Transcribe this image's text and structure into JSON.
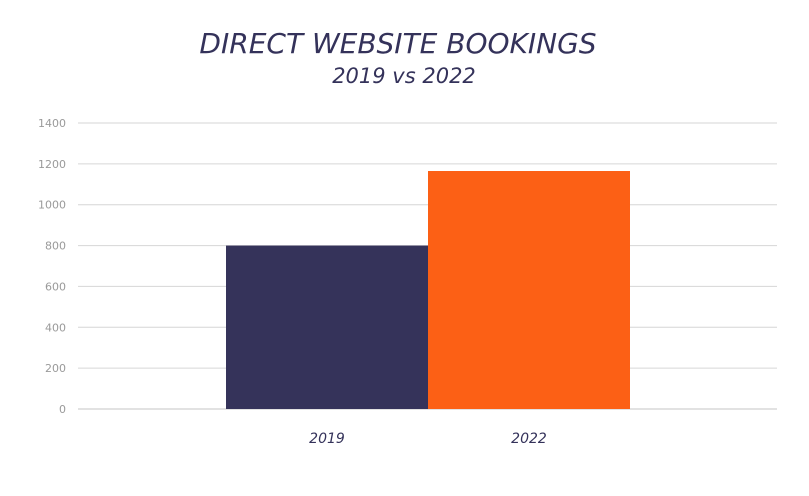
{
  "chart_data": {
    "type": "bar",
    "title": "DIRECT WEBSITE BOOKINGS",
    "subtitle": "2019 vs 2022",
    "categories": [
      "2019",
      "2022"
    ],
    "values": [
      800,
      1165
    ],
    "colors": [
      "#35335a",
      "#fc6015"
    ],
    "ylim": [
      0,
      1400
    ],
    "yticks": [
      0,
      200,
      400,
      600,
      800,
      1000,
      1200,
      1400
    ],
    "ytick_labels": [
      "0",
      "200",
      "400",
      "600",
      "800",
      "1000",
      "1200",
      "1400"
    ],
    "grid": true,
    "legend": "none",
    "xlabel": "",
    "ylabel": ""
  }
}
